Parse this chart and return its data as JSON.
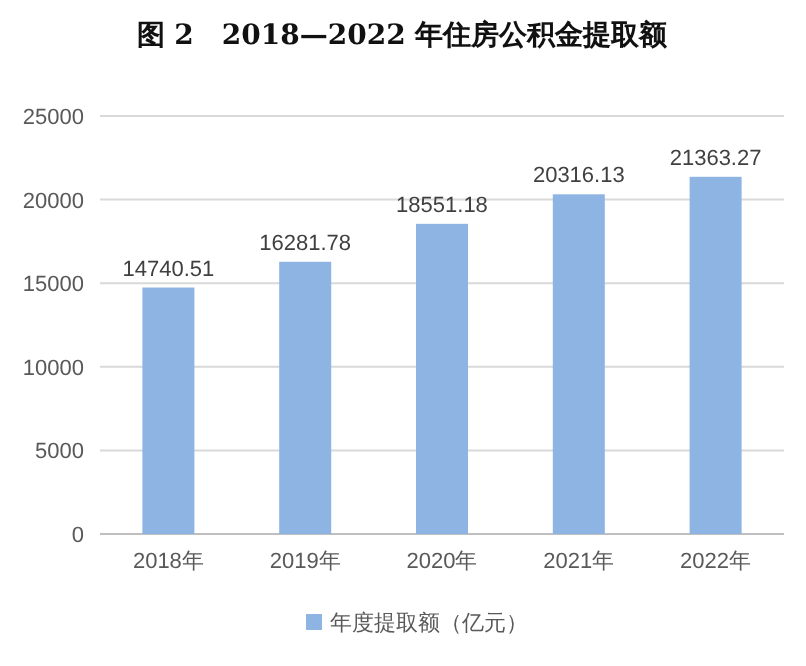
{
  "chart_data": {
    "type": "bar",
    "title": "图 2　2018—2022 年住房公积金提取额",
    "categories": [
      "2018年",
      "2019年",
      "2020年",
      "2021年",
      "2022年"
    ],
    "series": [
      {
        "name": "年度提取额（亿元）",
        "color": "#8eb4e3",
        "values": [
          14740.51,
          16281.78,
          18551.18,
          20316.13,
          21363.27
        ]
      }
    ],
    "ylim": [
      0,
      25000
    ],
    "yticks": [
      0,
      5000,
      10000,
      15000,
      20000,
      25000
    ],
    "grid": "y",
    "legend": "bottom",
    "data_labels": true
  }
}
